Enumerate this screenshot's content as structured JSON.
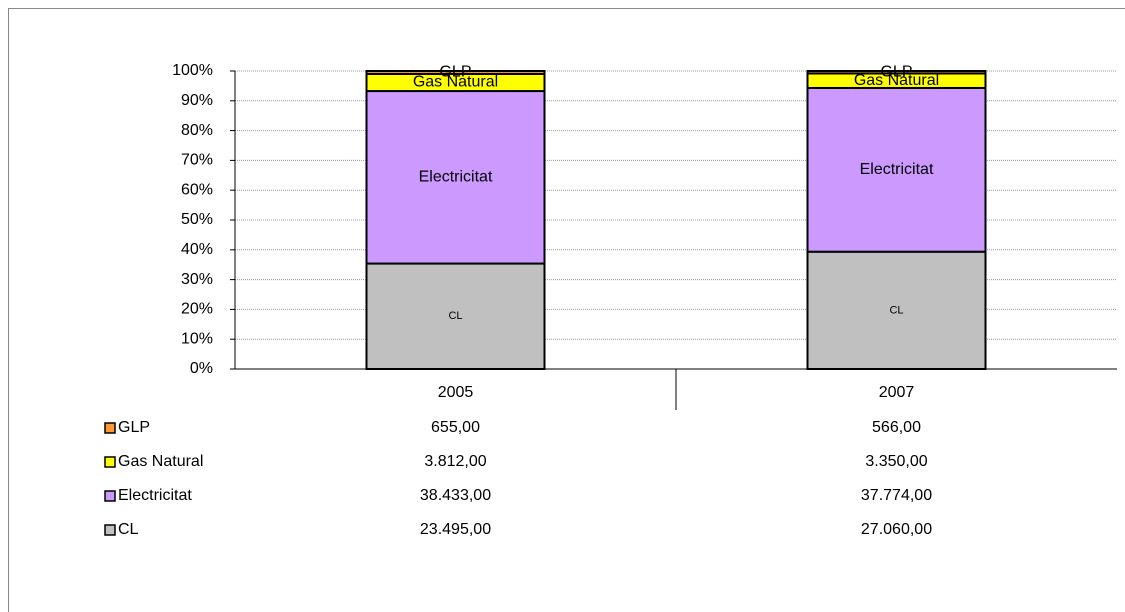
{
  "chart_data": {
    "type": "bar",
    "stacked": "percent",
    "categories": [
      "2005",
      "2007"
    ],
    "series": [
      {
        "name": "CL",
        "color": "#c0c0c0",
        "values": [
          23495,
          27060
        ],
        "value_labels": [
          "23.495,00",
          "27.060,00"
        ]
      },
      {
        "name": "Electricitat",
        "color": "#cc99ff",
        "values": [
          38433,
          37774
        ],
        "value_labels": [
          "38.433,00",
          "37.774,00"
        ]
      },
      {
        "name": "Gas Natural",
        "color": "#ffff00",
        "values": [
          3812,
          3350
        ],
        "value_labels": [
          "3.812,00",
          "3.350,00"
        ]
      },
      {
        "name": "GLP",
        "color": "#ff9933",
        "values": [
          655,
          566
        ],
        "value_labels": [
          "655,00",
          "566,00"
        ]
      }
    ],
    "ylim": [
      0,
      100
    ],
    "yticks": [
      {
        "value": 0,
        "label": "0%"
      },
      {
        "value": 10,
        "label": "10%"
      },
      {
        "value": 20,
        "label": "20%"
      },
      {
        "value": 30,
        "label": "30%"
      },
      {
        "value": 40,
        "label": "40%"
      },
      {
        "value": 50,
        "label": "50%"
      },
      {
        "value": 60,
        "label": "60%"
      },
      {
        "value": 70,
        "label": "70%"
      },
      {
        "value": 80,
        "label": "80%"
      },
      {
        "value": 90,
        "label": "90%"
      },
      {
        "value": 100,
        "label": "100%"
      }
    ],
    "grid": true
  }
}
